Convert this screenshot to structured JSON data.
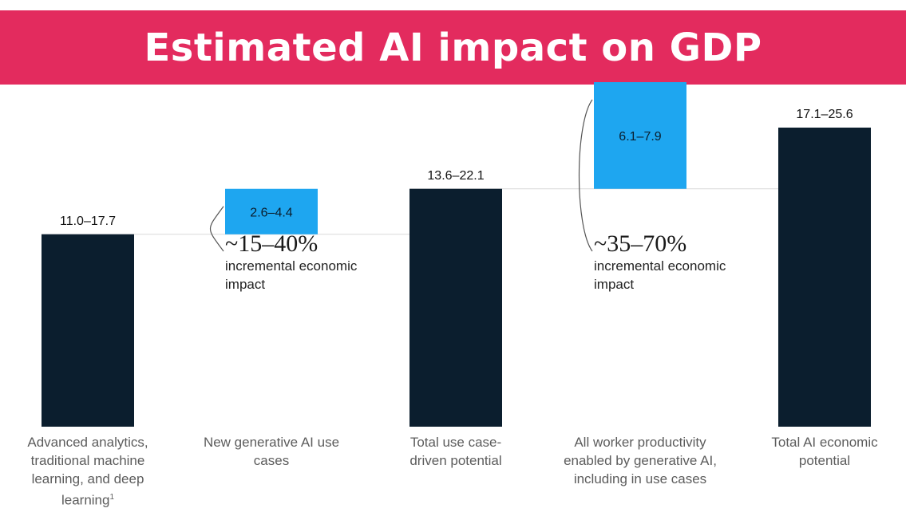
{
  "title": "Estimated AI impact on GDP",
  "colors": {
    "banner": "#e32b5e",
    "dark_bar": "#0b1e2e",
    "light_bar": "#1ea6f0",
    "baseline_line": "#d9d9d9"
  },
  "chart_data": {
    "type": "bar",
    "subtype": "waterfall",
    "title": "Estimated AI impact on GDP",
    "categories": [
      "Advanced analytics, traditional machine learning, and deep learning",
      "New generative AI use cases",
      "Total use case-driven potential",
      "All worker productivity enabled by generative AI, including in use cases",
      "Total AI economic potential"
    ],
    "category_footnotes": [
      "1",
      "",
      "",
      "",
      ""
    ],
    "bars": [
      {
        "label": "11.0–17.7",
        "low": 11.0,
        "high": 17.7,
        "kind": "total",
        "base": 0
      },
      {
        "label": "2.6–4.4",
        "low": 2.6,
        "high": 4.4,
        "kind": "increment",
        "base": 11.0
      },
      {
        "label": "13.6–22.1",
        "low": 13.6,
        "high": 22.1,
        "kind": "total",
        "base": 0
      },
      {
        "label": "6.1–7.9",
        "low": 6.1,
        "high": 7.9,
        "kind": "increment",
        "base": 13.6
      },
      {
        "label": "17.1–25.6",
        "low": 17.1,
        "high": 25.6,
        "kind": "total",
        "base": 0
      }
    ],
    "annotations": [
      {
        "percent": "~15–40%",
        "text": "incremental economic impact",
        "after_bar": 1
      },
      {
        "percent": "~35–70%",
        "text": "incremental economic impact",
        "after_bar": 3
      }
    ],
    "ylim": [
      0,
      17.1
    ],
    "xlabel": "",
    "ylabel": ""
  }
}
